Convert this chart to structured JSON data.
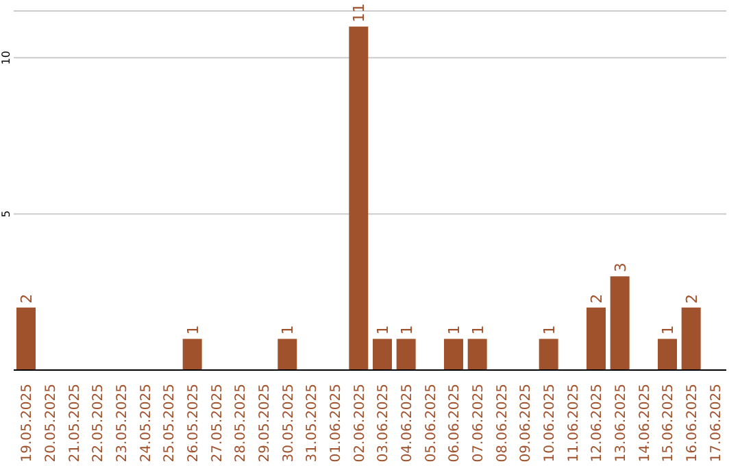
{
  "chart_data": {
    "type": "bar",
    "categories": [
      "19.05.2025",
      "20.05.2025",
      "21.05.2025",
      "22.05.2025",
      "23.05.2025",
      "24.05.2025",
      "25.05.2025",
      "26.05.2025",
      "27.05.2025",
      "28.05.2025",
      "29.05.2025",
      "30.05.2025",
      "31.05.2025",
      "01.06.2025",
      "02.06.2025",
      "03.06.2025",
      "04.06.2025",
      "05.06.2025",
      "06.06.2025",
      "07.06.2025",
      "08.06.2025",
      "09.06.2025",
      "10.06.2025",
      "11.06.2025",
      "12.06.2025",
      "13.06.2025",
      "14.06.2025",
      "15.06.2025",
      "16.06.2025",
      "17.06.2025"
    ],
    "values": [
      2,
      0,
      0,
      0,
      0,
      0,
      0,
      1,
      0,
      0,
      0,
      1,
      0,
      0,
      11,
      1,
      1,
      0,
      1,
      1,
      0,
      0,
      1,
      0,
      2,
      3,
      0,
      1,
      2,
      0
    ],
    "value_labels": [
      "2",
      null,
      null,
      null,
      null,
      null,
      null,
      "1",
      null,
      null,
      null,
      "1",
      null,
      null,
      "11",
      "1",
      "1",
      null,
      "1",
      "1",
      null,
      null,
      "1",
      null,
      "2",
      "3",
      null,
      "1",
      "2",
      null
    ],
    "color": "#a0522d",
    "ylim": [
      0,
      11.5
    ],
    "yticks": [
      5,
      10
    ],
    "grid": "y"
  }
}
